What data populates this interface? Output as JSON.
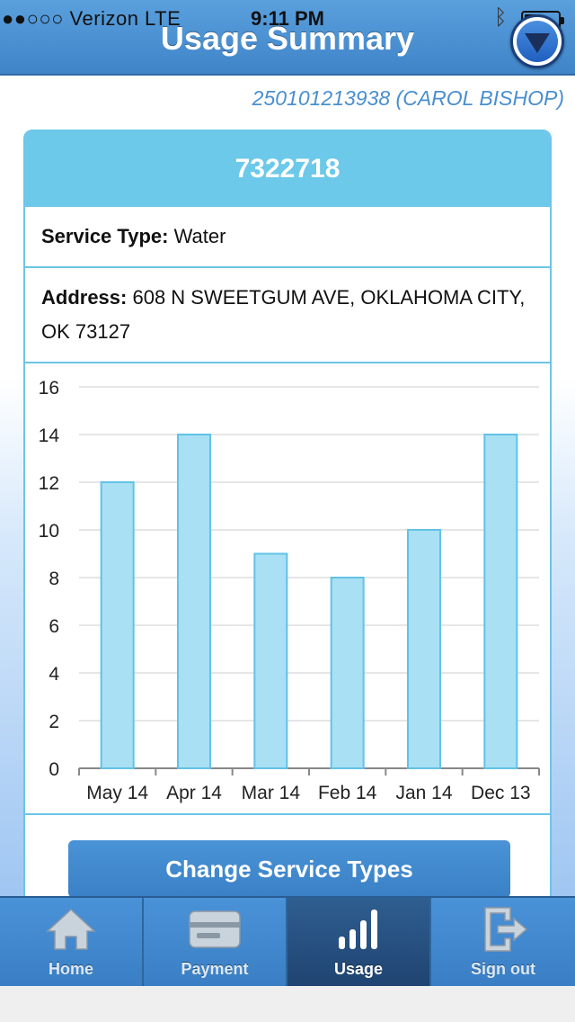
{
  "status_bar": {
    "carrier": "●●○○○ Verizon  LTE",
    "time": "9:11 PM",
    "bluetooth_icon": "bluetooth-icon",
    "battery_icon": "battery-icon"
  },
  "header": {
    "title": "Usage Summary",
    "menu_icon": "chevron-down-circle-icon"
  },
  "account": {
    "label": "250101213938 (CAROL BISHOP)"
  },
  "meter": {
    "number": "7322718",
    "service_type_label": "Service Type:",
    "service_type_value": "Water",
    "address_label": "Address:",
    "address_value": "608 N SWEETGUM AVE, OKLAHOMA CITY, OK 73127"
  },
  "chart_data": {
    "type": "bar",
    "categories": [
      "May 14",
      "Apr 14",
      "Mar 14",
      "Feb 14",
      "Jan 14",
      "Dec 13"
    ],
    "values": [
      12,
      14,
      9,
      8,
      10,
      14
    ],
    "yticks": [
      0,
      2,
      4,
      6,
      8,
      10,
      12,
      14,
      16
    ],
    "ylim": [
      0,
      16
    ],
    "grid": true,
    "colors": {
      "bar_fill": "#a9e0f3",
      "bar_stroke": "#62c2e6",
      "grid": "#dddddd"
    }
  },
  "actions": {
    "change_service_label": "Change Service Types"
  },
  "tabbar": {
    "items": [
      {
        "label": "Home",
        "icon": "home-icon"
      },
      {
        "label": "Payment",
        "icon": "credit-card-icon"
      },
      {
        "label": "Usage",
        "icon": "bar-chart-icon",
        "active": true
      },
      {
        "label": "Sign out",
        "icon": "sign-out-icon"
      }
    ]
  }
}
